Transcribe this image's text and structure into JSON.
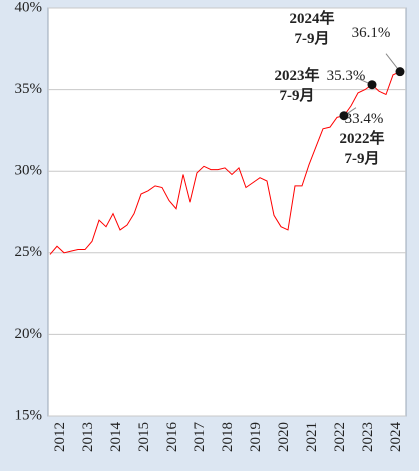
{
  "chart_data": {
    "type": "line",
    "categories": [
      "2012",
      null,
      null,
      null,
      "2013",
      null,
      null,
      null,
      "2014",
      null,
      null,
      null,
      "2015",
      null,
      null,
      null,
      "2016",
      null,
      null,
      null,
      "2017",
      null,
      null,
      null,
      "2018",
      null,
      null,
      null,
      "2019",
      null,
      null,
      null,
      "2020",
      null,
      null,
      null,
      "2021",
      null,
      null,
      null,
      "2022",
      null,
      null,
      null,
      "2023",
      null,
      null,
      null,
      "2024",
      null,
      null
    ],
    "series": [
      {
        "color": "#ff0000",
        "values": [
          24.9,
          25.4,
          25.0,
          25.1,
          25.2,
          25.2,
          25.7,
          27.0,
          26.6,
          27.4,
          26.4,
          26.7,
          27.4,
          28.6,
          28.8,
          29.1,
          29.0,
          28.2,
          27.7,
          29.8,
          28.1,
          29.9,
          30.3,
          30.1,
          30.1,
          30.2,
          29.8,
          30.2,
          29.0,
          29.3,
          29.6,
          29.4,
          27.3,
          26.6,
          26.4,
          29.1,
          29.1,
          30.4,
          31.5,
          32.6,
          32.7,
          33.3,
          33.4,
          34.0,
          34.8,
          35.0,
          35.3,
          34.9,
          34.7,
          35.9,
          36.1
        ],
        "value_labels": [
          null,
          null,
          null,
          null,
          null,
          null,
          null,
          null,
          null,
          null,
          null,
          null,
          null,
          null,
          null,
          null,
          null,
          null,
          null,
          null,
          null,
          null,
          null,
          null,
          null,
          null,
          null,
          null,
          null,
          null,
          null,
          null,
          null,
          null,
          null,
          null,
          null,
          null,
          null,
          null,
          null,
          null,
          "33.4%",
          null,
          null,
          null,
          "35.3%",
          null,
          null,
          null,
          "36.1%"
        ],
        "notes": [
          null,
          null,
          null,
          null,
          null,
          null,
          null,
          null,
          null,
          null,
          null,
          null,
          null,
          null,
          null,
          null,
          null,
          null,
          null,
          null,
          null,
          null,
          null,
          null,
          null,
          null,
          null,
          null,
          null,
          null,
          null,
          null,
          null,
          null,
          null,
          null,
          null,
          null,
          null,
          null,
          null,
          null,
          [
            "2022年",
            "7-9月"
          ],
          null,
          null,
          null,
          [
            "2023年",
            "7-9月"
          ],
          null,
          null,
          null,
          [
            "2024年",
            "7-9月"
          ]
        ]
      }
    ],
    "ylim": [
      15,
      40
    ],
    "yticks": [
      {
        "value": 15,
        "label": "15%"
      },
      {
        "value": 20,
        "label": "20%"
      },
      {
        "value": 25,
        "label": "25%"
      },
      {
        "value": 30,
        "label": "30%"
      },
      {
        "value": 35,
        "label": "35%"
      },
      {
        "value": 40,
        "label": "40%"
      }
    ],
    "grid": true
  }
}
